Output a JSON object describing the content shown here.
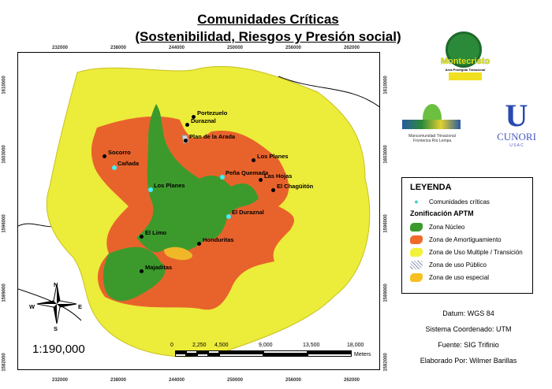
{
  "title": {
    "line1": "Comunidades Críticas",
    "line2": "(Sostenibilidad, Riesgos y Presión social)"
  },
  "axes": {
    "x_ticks": [
      "232000",
      "238000",
      "244000",
      "250000",
      "256000",
      "262000"
    ],
    "y_ticks": [
      "1610000",
      "1603000",
      "1596000",
      "1589000",
      "1582000"
    ]
  },
  "communities": [
    {
      "name": "Portezuelo",
      "critical": false
    },
    {
      "name": "Duraznal",
      "critical": false
    },
    {
      "name": "Plan de la Arada",
      "critical": false
    },
    {
      "name": "Socorro",
      "critical": false
    },
    {
      "name": "Cañada",
      "critical": true
    },
    {
      "name": "Los Planes",
      "critical": true
    },
    {
      "name": "Peña Quemada",
      "critical": true
    },
    {
      "name": "Los Planes",
      "critical": false
    },
    {
      "name": "Las Hojas",
      "critical": false
    },
    {
      "name": "El Chagüitón",
      "critical": false
    },
    {
      "name": "El Duraznal",
      "critical": true
    },
    {
      "name": "El Limo",
      "critical": false
    },
    {
      "name": "Honduritas",
      "critical": false
    },
    {
      "name": "Majaditas",
      "critical": false
    }
  ],
  "legend": {
    "title": "LEYENDA",
    "point": "Comunidades críticas",
    "subtitle": "Zonificación APTM",
    "zones": [
      {
        "label": "Zona Núcleo",
        "color": "#3a9a2a"
      },
      {
        "label": "Zona de Amortiguamiento",
        "color": "#f06a2a"
      },
      {
        "label": "Zona de Uso Multiple / Transición",
        "color": "#f2f23a"
      },
      {
        "label": "Zona de uso Público",
        "color": "#c8d0e8"
      },
      {
        "label": "Zona de uso especial",
        "color": "#f5c020"
      }
    ],
    "point_color": "#3fd0c0"
  },
  "compass": {
    "n": "N",
    "s": "S",
    "e": "E",
    "w": "W"
  },
  "scale": {
    "ratio": "1:190,000",
    "ticks": [
      "0",
      "2,250",
      "4,500",
      "9,000",
      "13,500",
      "18,000"
    ],
    "unit": "Meters"
  },
  "info": {
    "datum": "Datum: WGS 84",
    "system": "Sistema Coordenado: UTM",
    "source": "Fuente: SIG Trifinio",
    "author": "Elaborado Por: Wilmer Barillas"
  },
  "logos": {
    "montecristo": "Montecristo",
    "montecristo_sub": "Area Protegida Trinacional",
    "mancomunidad": "Mancomunidad Trinacional Fronteriza Río Lempa",
    "cunori": "CUNORI",
    "usac": "U S A C"
  }
}
